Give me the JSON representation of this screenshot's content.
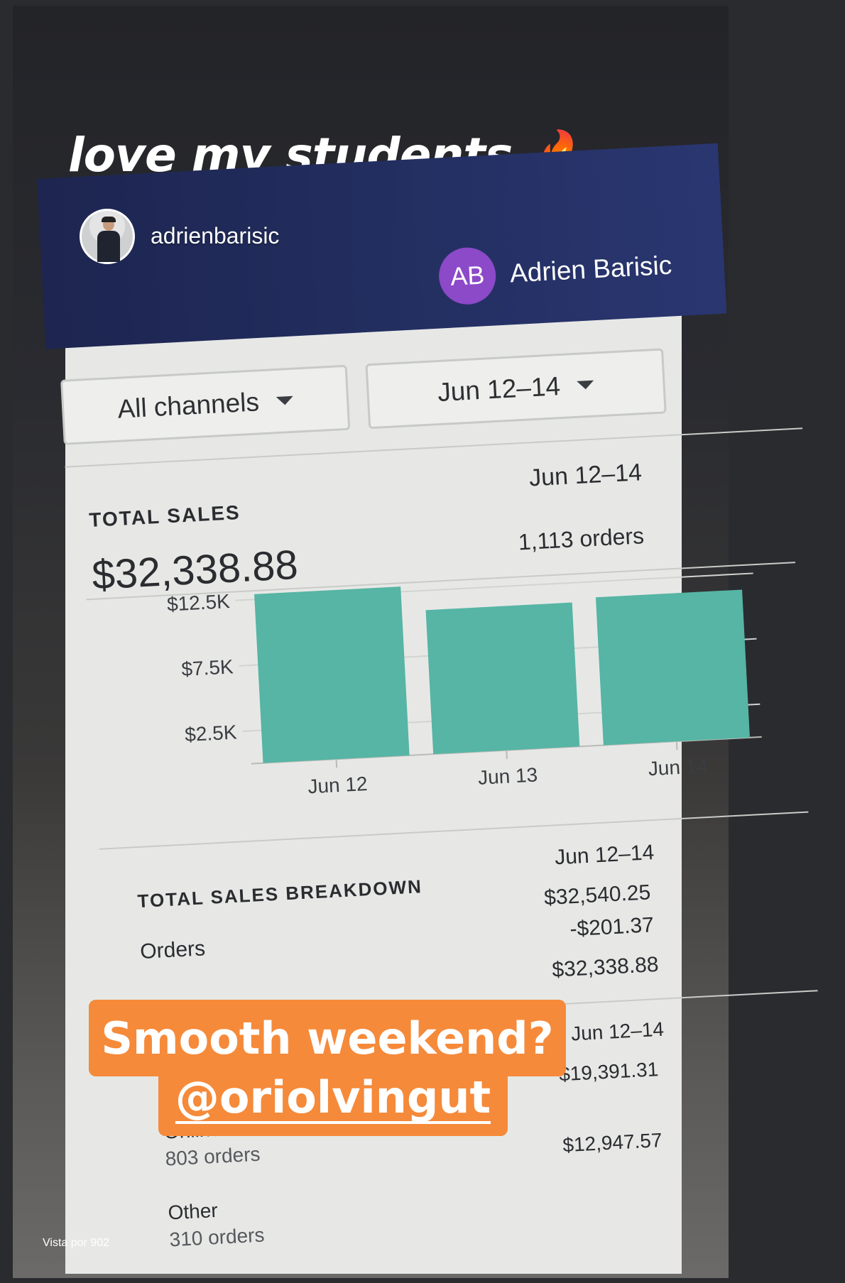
{
  "story": {
    "headline": "love my students",
    "headline_emoji": "🔥",
    "username": "adrienbarisic",
    "views_label": "Vista por 902"
  },
  "dashboard": {
    "user_initials": "AB",
    "user_name": "Adrien Barisic",
    "channel_select": "All channels",
    "date_select": "Jun 12–14",
    "total_sales": {
      "title": "TOTAL SALES",
      "amount": "$32,338.88",
      "date_range": "Jun 12–14",
      "orders": "1,113 orders"
    },
    "breakdown": {
      "title": "TOTAL SALES BREAKDOWN",
      "date_range": "Jun 12–14",
      "orders_label": "Orders",
      "orders_value": "$32,540.25",
      "returns_value": "-$201.37",
      "total_value": "$32,338.88"
    },
    "channels": {
      "date_range": "Jun 12–14",
      "online_store_label": "Online Store",
      "online_store_orders": "803 orders",
      "online_store_value": "$19,391.31",
      "other_label": "Other",
      "other_orders": "310 orders",
      "other_value": "$12,947.57"
    }
  },
  "chart_data": {
    "type": "bar",
    "categories": [
      "Jun 12",
      "Jun 13",
      "Jun 14"
    ],
    "values": [
      12900,
      11000,
      11300
    ],
    "ytick_labels": [
      "$12.5K",
      "$7.5K",
      "$2.5K"
    ],
    "ytick_values": [
      12500,
      7500,
      2500
    ],
    "ylim": [
      0,
      13000
    ],
    "color": "#56b5a4",
    "grid": true
  },
  "stickers": {
    "question": "Smooth weekend?",
    "mention": "@oriolvingut"
  },
  "colors": {
    "nav": "#243063",
    "avatar_purple": "#8c49c8",
    "bar": "#56b5a4",
    "sticker_orange": "#f58a3a"
  }
}
